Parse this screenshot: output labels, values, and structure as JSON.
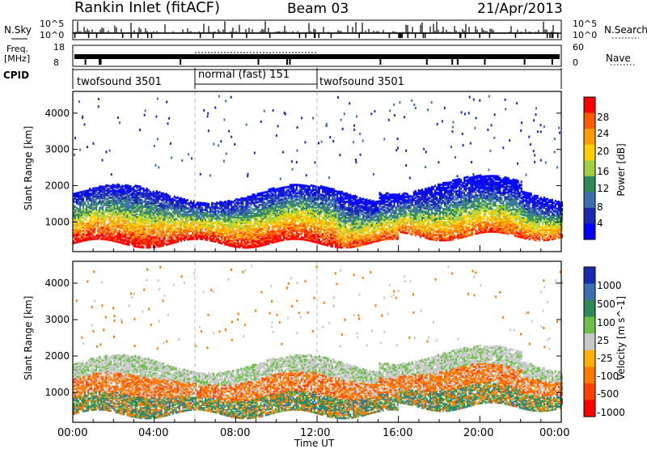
{
  "header": {
    "title": "Rankin Inlet (fitACF)",
    "beam": "Beam 03",
    "date": "21/Apr/2013"
  },
  "strip": {
    "nsky_label": "N.Sky",
    "nsky_ticks": [
      "10^5",
      "10^0"
    ],
    "nsearch_label": "N.Search",
    "freq_label_1": "Freq.",
    "freq_label_2": "[MHz]",
    "freq_ticks": [
      "18",
      "8"
    ],
    "nave_label": "Nave",
    "nave_ticks": [
      "60",
      "0"
    ],
    "cpid_label": "CPID",
    "cpid_segments": [
      {
        "label": "twofsound 3501",
        "start": 0,
        "end": 6
      },
      {
        "label": "normal (fast) 151",
        "start": 6,
        "end": 12
      },
      {
        "label": "twofsound 3501",
        "start": 12,
        "end": 24
      }
    ]
  },
  "chart_data": [
    {
      "type": "heatmap",
      "title": "",
      "ylabel": "Slant Range [km]",
      "xlabel": "",
      "xlim": [
        0,
        24
      ],
      "ylim": [
        180,
        4600
      ],
      "yticks": [
        1000,
        2000,
        3000,
        4000
      ],
      "colorbar": {
        "label": "Power [dB]",
        "ticks": [
          "28",
          "24",
          "20",
          "16",
          "12",
          "8",
          "4"
        ],
        "colors": [
          "#ff0000",
          "#ff5a00",
          "#ff9a00",
          "#ffd000",
          "#9fd040",
          "#2e8b57",
          "#3a6fb0",
          "#1a2ab0",
          "#0000ff"
        ]
      },
      "bands": [
        {
          "x": [
            0,
            24
          ],
          "range": [
            300,
            2200
          ],
          "peak_db": 28
        }
      ]
    },
    {
      "type": "heatmap",
      "title": "",
      "ylabel": "Slant Range [km]",
      "xlabel": "Time UT",
      "xlim": [
        0,
        24
      ],
      "ylim": [
        180,
        4600
      ],
      "yticks": [
        1000,
        2000,
        3000,
        4000
      ],
      "xticks": [
        "00:00",
        "04:00",
        "08:00",
        "12:00",
        "16:00",
        "20:00",
        "00:00"
      ],
      "colorbar": {
        "label": "Velocity [m s^-1]",
        "ticks": [
          "1000",
          "500",
          "100",
          "25",
          "-25",
          "-100",
          "-500",
          "-1000"
        ],
        "colors": [
          "#1a2ab0",
          "#3a6fb0",
          "#2e8b57",
          "#6cc04a",
          "#c8c8c8",
          "#ffb000",
          "#ff7a00",
          "#ff4000",
          "#ff0000"
        ]
      }
    }
  ]
}
